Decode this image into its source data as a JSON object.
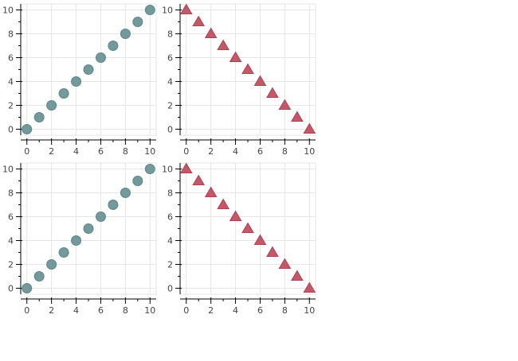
{
  "chart_data": [
    {
      "type": "scatter",
      "marker": "circle",
      "color": "#72999b",
      "x": [
        0,
        1,
        2,
        3,
        4,
        5,
        6,
        7,
        8,
        9,
        10
      ],
      "y": [
        0,
        1,
        2,
        3,
        4,
        5,
        6,
        7,
        8,
        9,
        10
      ],
      "xlim": [
        -0.5,
        10.5
      ],
      "ylim": [
        -0.5,
        10.5
      ],
      "xticks": [
        0,
        2,
        4,
        6,
        8,
        10
      ],
      "yticks": [
        0,
        2,
        4,
        6,
        8,
        10
      ],
      "grid": true
    },
    {
      "type": "scatter",
      "marker": "triangle",
      "color": "#c75667",
      "x": [
        0,
        1,
        2,
        3,
        4,
        5,
        6,
        7,
        8,
        9,
        10
      ],
      "y": [
        10,
        9,
        8,
        7,
        6,
        5,
        4,
        3,
        2,
        1,
        0
      ],
      "xlim": [
        -0.5,
        10.5
      ],
      "ylim": [
        -0.5,
        10.5
      ],
      "xticks": [
        0,
        2,
        4,
        6,
        8,
        10
      ],
      "yticks": [
        0,
        2,
        4,
        6,
        8,
        10
      ],
      "grid": true
    },
    {
      "type": "scatter",
      "marker": "circle",
      "color": "#72999b",
      "x": [
        0,
        1,
        2,
        3,
        4,
        5,
        6,
        7,
        8,
        9,
        10
      ],
      "y": [
        0,
        1,
        2,
        3,
        4,
        5,
        6,
        7,
        8,
        9,
        10
      ],
      "xlim": [
        -0.5,
        10.5
      ],
      "ylim": [
        -0.5,
        10.5
      ],
      "xticks": [
        0,
        2,
        4,
        6,
        8,
        10
      ],
      "yticks": [
        0,
        2,
        4,
        6,
        8,
        10
      ],
      "grid": true
    },
    {
      "type": "scatter",
      "marker": "triangle",
      "color": "#c75667",
      "x": [
        0,
        1,
        2,
        3,
        4,
        5,
        6,
        7,
        8,
        9,
        10
      ],
      "y": [
        10,
        9,
        8,
        7,
        6,
        5,
        4,
        3,
        2,
        1,
        0
      ],
      "xlim": [
        -0.5,
        10.5
      ],
      "ylim": [
        -0.5,
        10.5
      ],
      "xticks": [
        0,
        2,
        4,
        6,
        8,
        10
      ],
      "yticks": [
        0,
        2,
        4,
        6,
        8,
        10
      ],
      "grid": true
    }
  ]
}
